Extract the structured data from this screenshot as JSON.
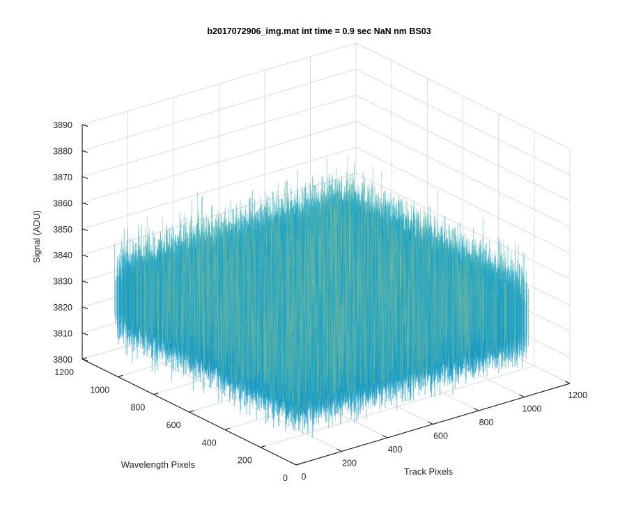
{
  "chart_data": {
    "type": "surface",
    "title": "b2017072906_img.mat int time = 0.9 sec  NaN nm BS03",
    "xlabel": "Track Pixels",
    "ylabel": "Wavelength Pixels",
    "zlabel": "Signal (ADU)",
    "xlim": [
      0,
      1200
    ],
    "ylim": [
      0,
      1200
    ],
    "zlim": [
      3800,
      3890
    ],
    "x_ticks": [
      "0",
      "200",
      "400",
      "600",
      "800",
      "1000",
      "1200"
    ],
    "y_ticks": [
      "0",
      "200",
      "400",
      "600",
      "800",
      "1000",
      "1200"
    ],
    "z_ticks": [
      "3800",
      "3810",
      "3820",
      "3830",
      "3840",
      "3850",
      "3860",
      "3870",
      "3880",
      "3890"
    ],
    "x_extent": [
      0,
      1024
    ],
    "y_extent": [
      0,
      1024
    ],
    "z_mean": 3830,
    "z_noise_range": [
      3805,
      3865
    ],
    "colormap": "parula",
    "colors": {
      "low": "#0072BD",
      "mid": "#1FA8C9",
      "high": "#E3D36B",
      "grid": "#DCDCDC",
      "axis": "#262626"
    },
    "grid": true
  }
}
